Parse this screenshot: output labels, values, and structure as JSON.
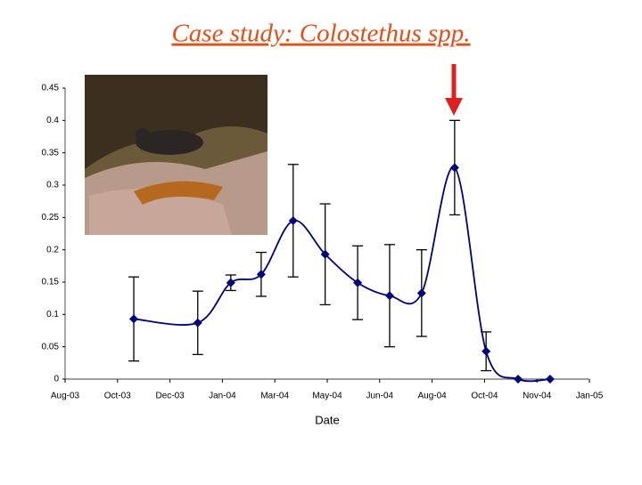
{
  "chart_data": {
    "type": "line",
    "title": "Case study: Colostethus spp.",
    "x_label": "Date",
    "x": [
      1.31,
      2.53,
      3.16,
      3.74,
      4.35,
      4.96,
      5.58,
      6.19,
      6.8,
      7.43,
      8.03,
      8.64,
      9.25
    ],
    "series": [
      {
        "color": "#00007f",
        "values": [
          0.093,
          0.087,
          0.149,
          0.162,
          0.245,
          0.193,
          0.149,
          0.129,
          0.133,
          0.327,
          0.043,
          0,
          0
        ],
        "errors": [
          0.065,
          0.049,
          0.012,
          0.034,
          0.087,
          0.078,
          0.057,
          0.079,
          0.067,
          0.073,
          0.03,
          0,
          0
        ]
      }
    ],
    "xlim": [
      0,
      10
    ],
    "xticks": [
      {
        "value": 0,
        "label": "Aug-03"
      },
      {
        "value": 1,
        "label": "Oct-03"
      },
      {
        "value": 2,
        "label": "Dec-03"
      },
      {
        "value": 3,
        "label": "Jan-04"
      },
      {
        "value": 4,
        "label": "Mar-04"
      },
      {
        "value": 5,
        "label": "May-04"
      },
      {
        "value": 6,
        "label": "Jun-04"
      },
      {
        "value": 7,
        "label": "Aug-04"
      },
      {
        "value": 8,
        "label": "Oct-04"
      },
      {
        "value": 9,
        "label": "Nov-04"
      },
      {
        "value": 10,
        "label": "Jan-05"
      }
    ],
    "ylim": [
      0,
      0.45
    ],
    "yticks": [
      0,
      0.05,
      0.1,
      0.15,
      0.2,
      0.25,
      0.3,
      0.35,
      0.4,
      0.45
    ]
  }
}
